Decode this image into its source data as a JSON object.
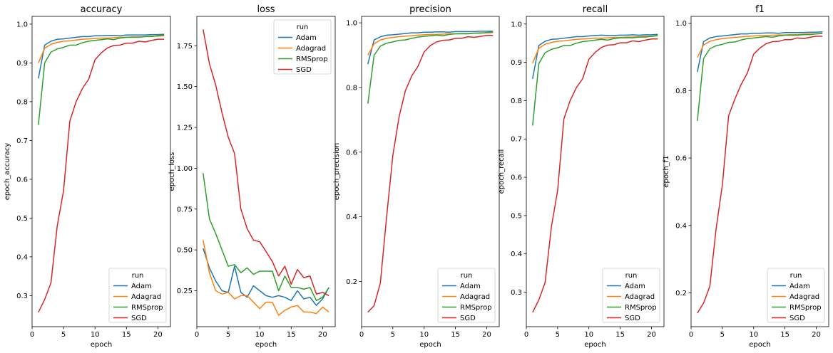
{
  "chart_data": [
    {
      "type": "line",
      "title": "accuracy",
      "xlabel": "epoch",
      "ylabel": "epoch_accuracy",
      "xlim": [
        0,
        22
      ],
      "ylim": [
        0.22,
        1.02
      ],
      "xticks": [
        0,
        5,
        10,
        15,
        20
      ],
      "yticks": [
        0.3,
        0.4,
        0.5,
        0.6,
        0.7,
        0.8,
        0.9,
        1.0
      ],
      "legend_title": "run",
      "legend_position": "lower right",
      "x": [
        1,
        2,
        3,
        4,
        5,
        6,
        7,
        8,
        9,
        10,
        11,
        12,
        13,
        14,
        15,
        16,
        17,
        18,
        19,
        20,
        21
      ],
      "series": [
        {
          "name": "Adam",
          "color": "#1f77b4",
          "values": [
            0.86,
            0.946,
            0.956,
            0.961,
            0.962,
            0.964,
            0.966,
            0.968,
            0.968,
            0.97,
            0.97,
            0.971,
            0.971,
            0.97,
            0.972,
            0.972,
            0.972,
            0.972,
            0.973,
            0.973,
            0.974
          ]
        },
        {
          "name": "Adagrad",
          "color": "#ff7f0e",
          "values": [
            0.9,
            0.938,
            0.948,
            0.953,
            0.956,
            0.957,
            0.959,
            0.961,
            0.962,
            0.963,
            0.964,
            0.964,
            0.965,
            0.966,
            0.966,
            0.967,
            0.967,
            0.968,
            0.969,
            0.969,
            0.97
          ]
        },
        {
          "name": "RMSprop",
          "color": "#2ca02c",
          "values": [
            0.74,
            0.9,
            0.928,
            0.936,
            0.94,
            0.946,
            0.946,
            0.952,
            0.956,
            0.958,
            0.96,
            0.962,
            0.96,
            0.964,
            0.966,
            0.966,
            0.966,
            0.968,
            0.968,
            0.97,
            0.972
          ]
        },
        {
          "name": "SGD",
          "color": "#d62728",
          "values": [
            0.257,
            0.29,
            0.333,
            0.48,
            0.57,
            0.75,
            0.8,
            0.834,
            0.858,
            0.908,
            0.926,
            0.939,
            0.945,
            0.946,
            0.951,
            0.951,
            0.956,
            0.954,
            0.958,
            0.961,
            0.961
          ]
        }
      ]
    },
    {
      "type": "line",
      "title": "loss",
      "xlabel": "epoch",
      "ylabel": "epoch_loss",
      "xlim": [
        0,
        22
      ],
      "ylim": [
        0.03,
        1.93
      ],
      "xticks": [
        0,
        5,
        10,
        15,
        20
      ],
      "yticks": [
        0.25,
        0.5,
        0.75,
        1.0,
        1.25,
        1.5,
        1.75
      ],
      "legend_title": "run",
      "legend_position": "upper right",
      "x": [
        1,
        2,
        3,
        4,
        5,
        6,
        7,
        8,
        9,
        10,
        11,
        12,
        13,
        14,
        15,
        16,
        17,
        18,
        19,
        20,
        21
      ],
      "series": [
        {
          "name": "Adam",
          "color": "#1f77b4",
          "values": [
            0.51,
            0.39,
            0.31,
            0.25,
            0.24,
            0.4,
            0.24,
            0.21,
            0.28,
            0.25,
            0.22,
            0.21,
            0.22,
            0.21,
            0.19,
            0.25,
            0.2,
            0.21,
            0.16,
            0.2,
            0.27
          ]
        },
        {
          "name": "Adagrad",
          "color": "#ff7f0e",
          "values": [
            0.56,
            0.36,
            0.25,
            0.23,
            0.24,
            0.2,
            0.22,
            0.22,
            0.18,
            0.14,
            0.18,
            0.18,
            0.1,
            0.13,
            0.15,
            0.16,
            0.12,
            0.12,
            0.11,
            0.15,
            0.12
          ]
        },
        {
          "name": "RMSprop",
          "color": "#2ca02c",
          "values": [
            0.97,
            0.69,
            0.6,
            0.5,
            0.4,
            0.41,
            0.36,
            0.39,
            0.35,
            0.37,
            0.37,
            0.37,
            0.25,
            0.34,
            0.27,
            0.27,
            0.26,
            0.27,
            0.19,
            0.21,
            0.27
          ]
        },
        {
          "name": "SGD",
          "color": "#d62728",
          "values": [
            1.85,
            1.64,
            1.51,
            1.34,
            1.19,
            1.09,
            0.75,
            0.63,
            0.56,
            0.55,
            0.49,
            0.43,
            0.34,
            0.4,
            0.29,
            0.38,
            0.33,
            0.34,
            0.23,
            0.24,
            0.22
          ]
        }
      ]
    },
    {
      "type": "line",
      "title": "precision",
      "xlabel": "epoch",
      "ylabel": "epoch_precision",
      "xlim": [
        0,
        22
      ],
      "ylim": [
        0.06,
        1.02
      ],
      "xticks": [
        0,
        5,
        10,
        15,
        20
      ],
      "yticks": [
        0.2,
        0.4,
        0.6,
        0.8,
        1.0
      ],
      "legend_title": "run",
      "legend_position": "lower right",
      "x": [
        1,
        2,
        3,
        4,
        5,
        6,
        7,
        8,
        9,
        10,
        11,
        12,
        13,
        14,
        15,
        16,
        17,
        18,
        19,
        20,
        21
      ],
      "series": [
        {
          "name": "Adam",
          "color": "#1f77b4",
          "values": [
            0.872,
            0.947,
            0.957,
            0.962,
            0.963,
            0.965,
            0.967,
            0.969,
            0.969,
            0.971,
            0.971,
            0.972,
            0.972,
            0.971,
            0.973,
            0.973,
            0.973,
            0.973,
            0.974,
            0.974,
            0.974
          ]
        },
        {
          "name": "Adagrad",
          "color": "#ff7f0e",
          "values": [
            0.9,
            0.935,
            0.947,
            0.952,
            0.955,
            0.957,
            0.959,
            0.96,
            0.962,
            0.963,
            0.964,
            0.964,
            0.965,
            0.966,
            0.966,
            0.967,
            0.967,
            0.968,
            0.969,
            0.969,
            0.97
          ]
        },
        {
          "name": "RMSprop",
          "color": "#2ca02c",
          "values": [
            0.75,
            0.9,
            0.928,
            0.937,
            0.941,
            0.946,
            0.947,
            0.952,
            0.956,
            0.958,
            0.96,
            0.962,
            0.96,
            0.964,
            0.966,
            0.966,
            0.966,
            0.968,
            0.968,
            0.97,
            0.972
          ]
        },
        {
          "name": "SGD",
          "color": "#d62728",
          "values": [
            0.105,
            0.125,
            0.195,
            0.4,
            0.59,
            0.71,
            0.79,
            0.835,
            0.865,
            0.91,
            0.93,
            0.941,
            0.946,
            0.947,
            0.952,
            0.952,
            0.957,
            0.955,
            0.958,
            0.961,
            0.961
          ]
        }
      ]
    },
    {
      "type": "line",
      "title": "recall",
      "xlabel": "epoch",
      "ylabel": "epoch_recall",
      "xlim": [
        0,
        22
      ],
      "ylim": [
        0.21,
        1.02
      ],
      "xticks": [
        0,
        5,
        10,
        15,
        20
      ],
      "yticks": [
        0.3,
        0.4,
        0.5,
        0.6,
        0.7,
        0.8,
        0.9,
        1.0
      ],
      "legend_title": "run",
      "legend_position": "lower right",
      "x": [
        1,
        2,
        3,
        4,
        5,
        6,
        7,
        8,
        9,
        10,
        11,
        12,
        13,
        14,
        15,
        16,
        17,
        18,
        19,
        20,
        21
      ],
      "series": [
        {
          "name": "Adam",
          "color": "#1f77b4",
          "values": [
            0.857,
            0.944,
            0.955,
            0.96,
            0.961,
            0.963,
            0.965,
            0.967,
            0.967,
            0.969,
            0.97,
            0.971,
            0.97,
            0.97,
            0.971,
            0.971,
            0.972,
            0.971,
            0.972,
            0.972,
            0.973
          ]
        },
        {
          "name": "Adagrad",
          "color": "#ff7f0e",
          "values": [
            0.898,
            0.937,
            0.947,
            0.952,
            0.955,
            0.956,
            0.958,
            0.96,
            0.961,
            0.962,
            0.963,
            0.963,
            0.964,
            0.965,
            0.965,
            0.966,
            0.966,
            0.967,
            0.968,
            0.968,
            0.969
          ]
        },
        {
          "name": "RMSprop",
          "color": "#2ca02c",
          "values": [
            0.735,
            0.897,
            0.925,
            0.934,
            0.938,
            0.944,
            0.944,
            0.95,
            0.954,
            0.956,
            0.958,
            0.96,
            0.958,
            0.962,
            0.964,
            0.964,
            0.964,
            0.966,
            0.966,
            0.968,
            0.97
          ]
        },
        {
          "name": "SGD",
          "color": "#d62728",
          "values": [
            0.247,
            0.28,
            0.325,
            0.47,
            0.565,
            0.752,
            0.8,
            0.834,
            0.857,
            0.908,
            0.926,
            0.939,
            0.945,
            0.946,
            0.951,
            0.951,
            0.956,
            0.954,
            0.958,
            0.961,
            0.961
          ]
        }
      ]
    },
    {
      "type": "line",
      "title": "f1",
      "xlabel": "epoch",
      "ylabel": "epoch_f1",
      "xlim": [
        0,
        22
      ],
      "ylim": [
        0.1,
        1.02
      ],
      "xticks": [
        0,
        5,
        10,
        15,
        20
      ],
      "yticks": [
        0.2,
        0.4,
        0.6,
        0.8,
        1.0
      ],
      "legend_title": "run",
      "legend_position": "lower right",
      "x": [
        1,
        2,
        3,
        4,
        5,
        6,
        7,
        8,
        9,
        10,
        11,
        12,
        13,
        14,
        15,
        16,
        17,
        18,
        19,
        20,
        21
      ],
      "series": [
        {
          "name": "Adam",
          "color": "#1f77b4",
          "values": [
            0.855,
            0.945,
            0.956,
            0.96,
            0.962,
            0.964,
            0.966,
            0.968,
            0.968,
            0.97,
            0.97,
            0.971,
            0.971,
            0.97,
            0.972,
            0.972,
            0.972,
            0.972,
            0.973,
            0.973,
            0.974
          ]
        },
        {
          "name": "Adagrad",
          "color": "#ff7f0e",
          "values": [
            0.898,
            0.935,
            0.946,
            0.951,
            0.954,
            0.956,
            0.958,
            0.959,
            0.961,
            0.962,
            0.963,
            0.963,
            0.964,
            0.965,
            0.965,
            0.966,
            0.966,
            0.967,
            0.968,
            0.968,
            0.969
          ]
        },
        {
          "name": "RMSprop",
          "color": "#2ca02c",
          "values": [
            0.71,
            0.895,
            0.924,
            0.933,
            0.937,
            0.943,
            0.944,
            0.95,
            0.954,
            0.956,
            0.958,
            0.96,
            0.958,
            0.962,
            0.964,
            0.964,
            0.964,
            0.966,
            0.966,
            0.968,
            0.97
          ]
        },
        {
          "name": "SGD",
          "color": "#d62728",
          "values": [
            0.14,
            0.17,
            0.22,
            0.39,
            0.52,
            0.725,
            0.775,
            0.818,
            0.852,
            0.908,
            0.926,
            0.939,
            0.945,
            0.946,
            0.951,
            0.951,
            0.956,
            0.954,
            0.958,
            0.961,
            0.961
          ]
        }
      ]
    }
  ]
}
